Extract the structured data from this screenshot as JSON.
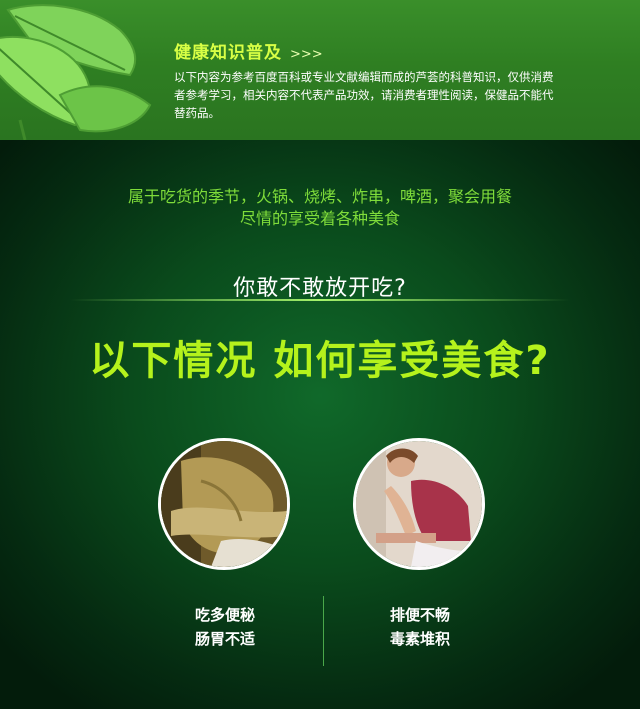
{
  "banner": {
    "title": "健康知识普及",
    "arrows": ">>>",
    "text_line1": "以下内容为参考百度百科或专业文献编辑而成的芦荟的科普知识，仅供消费",
    "text_line2": "者参考学习，相关内容不代表产品功效，请消费者理性阅读，保健品不能代",
    "text_line3": "替药品。"
  },
  "intro": {
    "line1": "属于吃货的季节，火锅、烧烤、炸串，啤酒，聚会用餐",
    "line2": "尽情的享受着各种美食"
  },
  "question": "你敢不敢放开吃?",
  "headline": "以下情况 如何享受美食?",
  "items": [
    {
      "line1": "吃多便秘",
      "line2": "肠胃不适"
    },
    {
      "line1": "排便不畅",
      "line2": "毒素堆积"
    }
  ],
  "colors": {
    "accent_green": "#b5f21c",
    "banner_title": "#d8ff45",
    "intro_text": "#7fdc3a"
  }
}
